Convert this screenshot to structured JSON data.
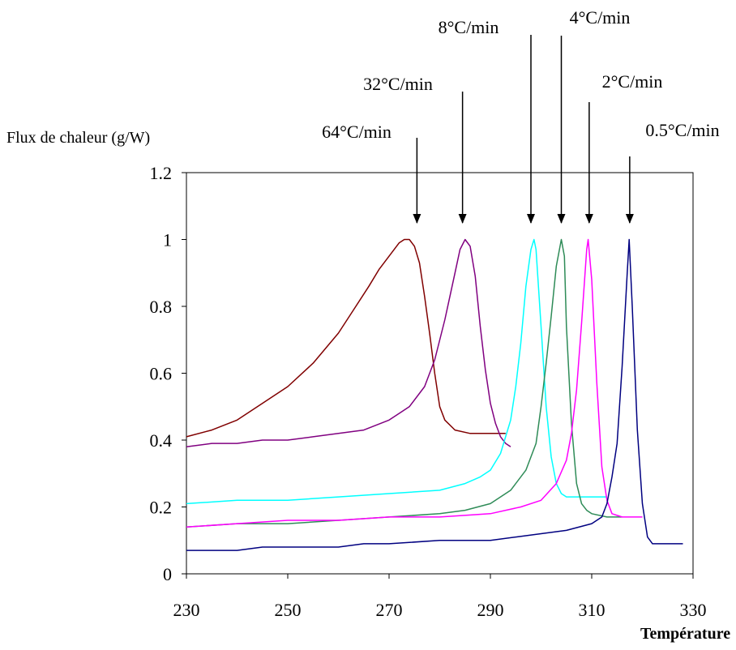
{
  "chart_data": {
    "type": "line",
    "ylabel": "Flux de chaleur (g/W)",
    "xlabel": "Température",
    "xlim": [
      230,
      330
    ],
    "ylim": [
      0,
      1.2
    ],
    "x_ticks": [
      230,
      250,
      270,
      290,
      310,
      330
    ],
    "y_ticks": [
      0,
      0.2,
      0.4,
      0.6,
      0.8,
      1,
      1.2
    ],
    "grid": false,
    "series": [
      {
        "name": "64°C/min",
        "color": "#800000",
        "points": [
          [
            230,
            0.41
          ],
          [
            235,
            0.43
          ],
          [
            240,
            0.46
          ],
          [
            245,
            0.51
          ],
          [
            250,
            0.56
          ],
          [
            255,
            0.63
          ],
          [
            260,
            0.72
          ],
          [
            263,
            0.79
          ],
          [
            266,
            0.86
          ],
          [
            268,
            0.91
          ],
          [
            270,
            0.95
          ],
          [
            272,
            0.99
          ],
          [
            273,
            1.0
          ],
          [
            274,
            1.0
          ],
          [
            275,
            0.98
          ],
          [
            276,
            0.93
          ],
          [
            277,
            0.83
          ],
          [
            278,
            0.72
          ],
          [
            279,
            0.6
          ],
          [
            280,
            0.5
          ],
          [
            281,
            0.46
          ],
          [
            283,
            0.43
          ],
          [
            286,
            0.42
          ],
          [
            290,
            0.42
          ],
          [
            293,
            0.42
          ]
        ],
        "peak": [
          274,
          1.0
        ]
      },
      {
        "name": "32°C/min",
        "color": "#800080",
        "points": [
          [
            230,
            0.38
          ],
          [
            235,
            0.39
          ],
          [
            240,
            0.39
          ],
          [
            245,
            0.4
          ],
          [
            250,
            0.4
          ],
          [
            255,
            0.41
          ],
          [
            260,
            0.42
          ],
          [
            265,
            0.43
          ],
          [
            270,
            0.46
          ],
          [
            274,
            0.5
          ],
          [
            277,
            0.56
          ],
          [
            279,
            0.64
          ],
          [
            281,
            0.76
          ],
          [
            283,
            0.9
          ],
          [
            284,
            0.97
          ],
          [
            285,
            1.0
          ],
          [
            286,
            0.98
          ],
          [
            287,
            0.89
          ],
          [
            288,
            0.74
          ],
          [
            289,
            0.61
          ],
          [
            290,
            0.51
          ],
          [
            291,
            0.45
          ],
          [
            292,
            0.41
          ],
          [
            293,
            0.39
          ],
          [
            294,
            0.38
          ]
        ],
        "peak": [
          285,
          1.0
        ]
      },
      {
        "name": "8°C/min",
        "color": "#00FFFF",
        "points": [
          [
            230,
            0.21
          ],
          [
            240,
            0.22
          ],
          [
            250,
            0.22
          ],
          [
            260,
            0.23
          ],
          [
            270,
            0.24
          ],
          [
            280,
            0.25
          ],
          [
            285,
            0.27
          ],
          [
            288,
            0.29
          ],
          [
            290,
            0.31
          ],
          [
            292,
            0.36
          ],
          [
            294,
            0.46
          ],
          [
            295,
            0.56
          ],
          [
            296,
            0.69
          ],
          [
            297,
            0.86
          ],
          [
            298,
            0.97
          ],
          [
            298.6,
            1.0
          ],
          [
            299,
            0.97
          ],
          [
            300,
            0.74
          ],
          [
            301,
            0.5
          ],
          [
            302,
            0.35
          ],
          [
            303,
            0.27
          ],
          [
            304,
            0.24
          ],
          [
            305,
            0.23
          ],
          [
            310,
            0.23
          ],
          [
            313,
            0.23
          ]
        ],
        "peak": [
          298.6,
          1.0
        ]
      },
      {
        "name": "4°C/min",
        "color": "#2E8B57",
        "points": [
          [
            230,
            0.14
          ],
          [
            240,
            0.15
          ],
          [
            250,
            0.15
          ],
          [
            260,
            0.16
          ],
          [
            270,
            0.17
          ],
          [
            280,
            0.18
          ],
          [
            285,
            0.19
          ],
          [
            290,
            0.21
          ],
          [
            294,
            0.25
          ],
          [
            297,
            0.31
          ],
          [
            299,
            0.39
          ],
          [
            300,
            0.5
          ],
          [
            301,
            0.63
          ],
          [
            302,
            0.77
          ],
          [
            303,
            0.92
          ],
          [
            304,
            1.0
          ],
          [
            304.6,
            0.95
          ],
          [
            305,
            0.74
          ],
          [
            306,
            0.45
          ],
          [
            307,
            0.27
          ],
          [
            308,
            0.21
          ],
          [
            309,
            0.19
          ],
          [
            310,
            0.18
          ],
          [
            313,
            0.17
          ],
          [
            316,
            0.17
          ]
        ],
        "peak": [
          304,
          1.0
        ]
      },
      {
        "name": "2°C/min",
        "color": "#FF00FF",
        "points": [
          [
            230,
            0.14
          ],
          [
            240,
            0.15
          ],
          [
            250,
            0.16
          ],
          [
            260,
            0.16
          ],
          [
            270,
            0.17
          ],
          [
            280,
            0.17
          ],
          [
            290,
            0.18
          ],
          [
            296,
            0.2
          ],
          [
            300,
            0.22
          ],
          [
            303,
            0.27
          ],
          [
            305,
            0.34
          ],
          [
            306,
            0.42
          ],
          [
            307,
            0.55
          ],
          [
            308,
            0.75
          ],
          [
            309,
            0.97
          ],
          [
            309.3,
            1.0
          ],
          [
            310,
            0.88
          ],
          [
            311,
            0.57
          ],
          [
            312,
            0.32
          ],
          [
            313,
            0.22
          ],
          [
            314,
            0.18
          ],
          [
            316,
            0.17
          ],
          [
            318,
            0.17
          ],
          [
            320,
            0.17
          ]
        ],
        "peak": [
          309.3,
          1.0
        ]
      },
      {
        "name": "0.5°C/min",
        "color": "#000080",
        "points": [
          [
            230,
            0.07
          ],
          [
            235,
            0.07
          ],
          [
            240,
            0.07
          ],
          [
            245,
            0.08
          ],
          [
            250,
            0.08
          ],
          [
            255,
            0.08
          ],
          [
            260,
            0.08
          ],
          [
            265,
            0.09
          ],
          [
            270,
            0.09
          ],
          [
            280,
            0.1
          ],
          [
            290,
            0.1
          ],
          [
            295,
            0.11
          ],
          [
            300,
            0.12
          ],
          [
            305,
            0.13
          ],
          [
            310,
            0.15
          ],
          [
            312,
            0.17
          ],
          [
            313,
            0.21
          ],
          [
            314,
            0.29
          ],
          [
            315,
            0.39
          ],
          [
            316,
            0.62
          ],
          [
            317,
            0.9
          ],
          [
            317.4,
            1.0
          ],
          [
            318,
            0.8
          ],
          [
            319,
            0.43
          ],
          [
            320,
            0.21
          ],
          [
            321,
            0.11
          ],
          [
            322,
            0.09
          ],
          [
            324,
            0.09
          ],
          [
            328,
            0.09
          ]
        ],
        "peak": [
          317.4,
          1.0
        ]
      }
    ],
    "annotations": [
      {
        "label": "64°C/min",
        "target_x": 275.5
      },
      {
        "label": "32°C/min",
        "target_x": 284.5
      },
      {
        "label": "8°C/min",
        "target_x": 298
      },
      {
        "label": "4°C/min",
        "target_x": 304
      },
      {
        "label": "2°C/min",
        "target_x": 309.5
      },
      {
        "label": "0.5°C/min",
        "target_x": 317.5
      }
    ]
  }
}
